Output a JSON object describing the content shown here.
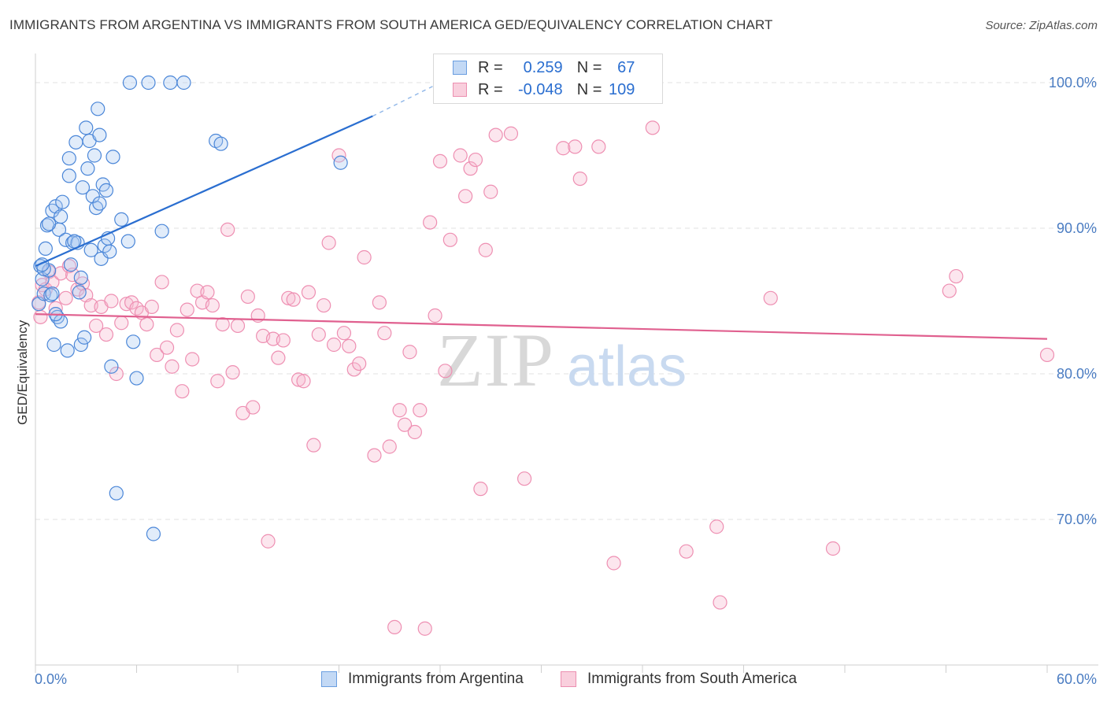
{
  "title": "IMMIGRANTS FROM ARGENTINA VS IMMIGRANTS FROM SOUTH AMERICA GED/EQUIVALENCY CORRELATION CHART",
  "source": "Source: ZipAtlas.com",
  "watermark": {
    "zip": "ZIP",
    "atlas": "atlas"
  },
  "colors": {
    "blue": "#3b7dd8",
    "blue_fill": "#a8c8f0",
    "blue_line": "#2a6ed0",
    "pink": "#e86a98",
    "pink_fill": "#f5b8cd",
    "pink_line": "#e0608f",
    "axis_text": "#4a7cc2",
    "grid": "#e0e0e0"
  },
  "legend_stats": [
    {
      "r_label": "R =",
      "r_value": "0.259",
      "n_label": "N =",
      "n_value": "67"
    },
    {
      "r_label": "R =",
      "r_value": "-0.048",
      "n_label": "N =",
      "n_value": "109"
    }
  ],
  "chart_data": {
    "type": "scatter",
    "title": "IMMIGRANTS FROM ARGENTINA VS IMMIGRANTS FROM SOUTH AMERICA GED/EQUIVALENCY CORRELATION CHART",
    "xlabel": "",
    "ylabel": "GED/Equivalency",
    "xlim": [
      0,
      60
    ],
    "ylim": [
      60,
      102
    ],
    "x_tick_labels": [
      "0.0%",
      "60.0%"
    ],
    "y_ticks": [
      70,
      80,
      90,
      100
    ],
    "y_tick_labels": [
      "70.0%",
      "80.0%",
      "90.0%",
      "100.0%"
    ],
    "grid": true,
    "legend_position": "top-center",
    "series": [
      {
        "name": "Immigrants from Argentina",
        "color": "#3b7dd8",
        "trend": {
          "x": [
            0,
            20,
            24
          ],
          "y": [
            87.4,
            97.7,
            100
          ]
        },
        "points": [
          [
            0.2,
            84.8
          ],
          [
            0.3,
            87.4
          ],
          [
            0.4,
            86.5
          ],
          [
            0.5,
            85.5
          ],
          [
            0.6,
            88.6
          ],
          [
            0.7,
            90.2
          ],
          [
            0.8,
            87.1
          ],
          [
            0.9,
            85.4
          ],
          [
            1.0,
            91.2
          ],
          [
            1.1,
            82.0
          ],
          [
            1.2,
            91.5
          ],
          [
            1.3,
            83.9
          ],
          [
            1.4,
            89.9
          ],
          [
            1.5,
            83.6
          ],
          [
            1.6,
            91.8
          ],
          [
            1.8,
            89.2
          ],
          [
            1.9,
            81.6
          ],
          [
            2.0,
            93.6
          ],
          [
            2.1,
            87.5
          ],
          [
            2.2,
            89.0
          ],
          [
            2.4,
            95.9
          ],
          [
            2.5,
            89.0
          ],
          [
            2.6,
            85.6
          ],
          [
            2.7,
            82.0
          ],
          [
            2.8,
            92.8
          ],
          [
            2.9,
            82.5
          ],
          [
            3.0,
            96.9
          ],
          [
            3.1,
            94.1
          ],
          [
            3.2,
            96.0
          ],
          [
            3.3,
            88.5
          ],
          [
            3.5,
            95.0
          ],
          [
            3.6,
            91.4
          ],
          [
            3.7,
            98.2
          ],
          [
            3.8,
            96.4
          ],
          [
            3.9,
            87.9
          ],
          [
            4.0,
            93.0
          ],
          [
            4.1,
            88.8
          ],
          [
            4.2,
            92.6
          ],
          [
            4.4,
            88.4
          ],
          [
            4.5,
            80.5
          ],
          [
            4.6,
            94.9
          ],
          [
            4.8,
            71.8
          ],
          [
            5.1,
            90.6
          ],
          [
            5.5,
            89.1
          ],
          [
            5.8,
            82.2
          ],
          [
            6.0,
            79.7
          ],
          [
            7.0,
            69.0
          ],
          [
            7.5,
            89.8
          ],
          [
            10.7,
            96.0
          ],
          [
            11.0,
            95.8
          ],
          [
            18.1,
            94.5
          ],
          [
            0.5,
            87.2
          ],
          [
            1.0,
            85.5
          ],
          [
            2.3,
            89.1
          ],
          [
            3.4,
            92.2
          ],
          [
            4.3,
            89.3
          ],
          [
            0.8,
            90.3
          ],
          [
            1.5,
            90.8
          ],
          [
            2.0,
            94.8
          ],
          [
            5.6,
            100
          ],
          [
            6.7,
            100
          ],
          [
            8.0,
            100
          ],
          [
            8.8,
            100
          ],
          [
            0.4,
            87.5
          ],
          [
            1.2,
            84.1
          ],
          [
            2.7,
            86.6
          ],
          [
            3.8,
            91.7
          ]
        ]
      },
      {
        "name": "Immigrants from South America",
        "color": "#e86a98",
        "trend": {
          "x": [
            0,
            60
          ],
          "y": [
            84.1,
            82.4
          ]
        },
        "points": [
          [
            0.2,
            84.9
          ],
          [
            0.4,
            86.1
          ],
          [
            0.6,
            85.8
          ],
          [
            0.8,
            87.0
          ],
          [
            1.0,
            86.3
          ],
          [
            1.2,
            84.5
          ],
          [
            1.5,
            86.9
          ],
          [
            1.8,
            85.2
          ],
          [
            2.0,
            87.4
          ],
          [
            2.2,
            86.8
          ],
          [
            2.5,
            85.8
          ],
          [
            2.8,
            86.2
          ],
          [
            3.0,
            85.4
          ],
          [
            3.3,
            84.7
          ],
          [
            3.6,
            83.3
          ],
          [
            3.9,
            84.6
          ],
          [
            4.2,
            82.7
          ],
          [
            4.5,
            85.0
          ],
          [
            4.8,
            80.0
          ],
          [
            5.1,
            83.5
          ],
          [
            5.4,
            84.8
          ],
          [
            5.7,
            84.9
          ],
          [
            6.0,
            84.5
          ],
          [
            6.3,
            84.2
          ],
          [
            6.6,
            83.4
          ],
          [
            6.9,
            84.6
          ],
          [
            7.2,
            81.3
          ],
          [
            7.5,
            86.3
          ],
          [
            7.8,
            81.8
          ],
          [
            8.1,
            80.5
          ],
          [
            8.4,
            83.0
          ],
          [
            8.7,
            78.8
          ],
          [
            9.0,
            84.4
          ],
          [
            9.3,
            81.0
          ],
          [
            9.6,
            85.7
          ],
          [
            9.9,
            84.9
          ],
          [
            10.2,
            85.6
          ],
          [
            10.5,
            84.7
          ],
          [
            10.8,
            79.5
          ],
          [
            11.1,
            83.4
          ],
          [
            11.4,
            89.9
          ],
          [
            11.7,
            80.1
          ],
          [
            12.0,
            83.3
          ],
          [
            12.3,
            77.3
          ],
          [
            12.6,
            85.3
          ],
          [
            12.9,
            77.7
          ],
          [
            13.2,
            84.0
          ],
          [
            13.5,
            82.6
          ],
          [
            13.8,
            68.5
          ],
          [
            14.1,
            82.4
          ],
          [
            14.4,
            81.1
          ],
          [
            14.7,
            82.3
          ],
          [
            15.0,
            85.2
          ],
          [
            15.3,
            85.1
          ],
          [
            15.6,
            79.6
          ],
          [
            15.9,
            79.5
          ],
          [
            16.2,
            85.6
          ],
          [
            16.5,
            75.1
          ],
          [
            16.8,
            82.7
          ],
          [
            17.1,
            84.7
          ],
          [
            17.4,
            89.0
          ],
          [
            17.7,
            82.0
          ],
          [
            18.0,
            95.0
          ],
          [
            18.3,
            82.8
          ],
          [
            18.6,
            81.9
          ],
          [
            18.9,
            80.3
          ],
          [
            19.2,
            80.7
          ],
          [
            19.5,
            88.0
          ],
          [
            20.1,
            74.4
          ],
          [
            20.4,
            84.9
          ],
          [
            20.7,
            82.8
          ],
          [
            21.0,
            75.0
          ],
          [
            21.3,
            62.6
          ],
          [
            21.6,
            77.5
          ],
          [
            21.9,
            76.5
          ],
          [
            22.2,
            81.5
          ],
          [
            22.5,
            76.0
          ],
          [
            22.8,
            77.5
          ],
          [
            23.1,
            62.5
          ],
          [
            23.4,
            90.4
          ],
          [
            23.7,
            84.0
          ],
          [
            24.0,
            94.6
          ],
          [
            24.3,
            80.2
          ],
          [
            24.6,
            89.2
          ],
          [
            25.2,
            95.0
          ],
          [
            25.5,
            92.2
          ],
          [
            25.8,
            94.1
          ],
          [
            26.1,
            94.7
          ],
          [
            26.4,
            72.1
          ],
          [
            26.7,
            88.5
          ],
          [
            27.0,
            92.5
          ],
          [
            27.3,
            96.4
          ],
          [
            28.2,
            96.5
          ],
          [
            29.0,
            72.8
          ],
          [
            31.3,
            95.5
          ],
          [
            32.0,
            95.6
          ],
          [
            32.3,
            93.4
          ],
          [
            33.4,
            95.6
          ],
          [
            34.3,
            67.0
          ],
          [
            36.6,
            96.9
          ],
          [
            38.6,
            67.8
          ],
          [
            40.4,
            69.5
          ],
          [
            40.6,
            64.3
          ],
          [
            43.6,
            85.2
          ],
          [
            47.3,
            68.0
          ],
          [
            54.2,
            85.7
          ],
          [
            54.6,
            86.7
          ],
          [
            60.0,
            81.3
          ],
          [
            0.3,
            83.9
          ]
        ]
      }
    ]
  }
}
